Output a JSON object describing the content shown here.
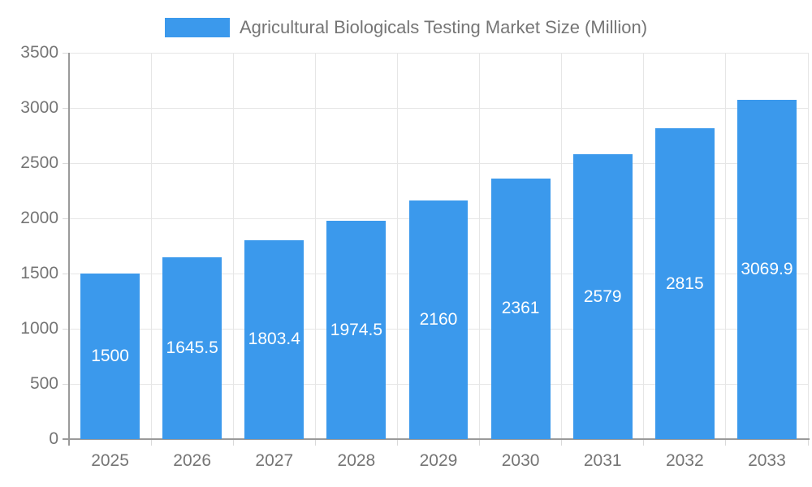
{
  "chart_data": {
    "type": "bar",
    "title": "Agricultural Biologicals Testing Market Size (Million)",
    "categories": [
      "2025",
      "2026",
      "2027",
      "2028",
      "2029",
      "2030",
      "2031",
      "2032",
      "2033"
    ],
    "series": [
      {
        "name": "Agricultural Biologicals Testing Market Size (Million)",
        "values": [
          1500,
          1645.5,
          1803.4,
          1974.5,
          2160,
          2361,
          2579,
          2815,
          3069.9
        ]
      }
    ],
    "value_labels": [
      "1500",
      "1645.5",
      "1803.4",
      "1974.5",
      "2160",
      "2361",
      "2579",
      "2815",
      "3069.9"
    ],
    "xlabel": "",
    "ylabel": "",
    "ylim": [
      0,
      3500
    ],
    "ytick_step": 500,
    "ytick_labels": [
      "0",
      "500",
      "1000",
      "1500",
      "2000",
      "2500",
      "3000",
      "3500"
    ],
    "grid": true,
    "legend_position": "top",
    "colors": {
      "bar": "#3B99EC",
      "value_label": "#ffffff",
      "grid": "#e6e6e6",
      "tick": "#d9d9d9",
      "axis": "#9a9a9a",
      "text": "#757575",
      "background": "#ffffff"
    }
  }
}
